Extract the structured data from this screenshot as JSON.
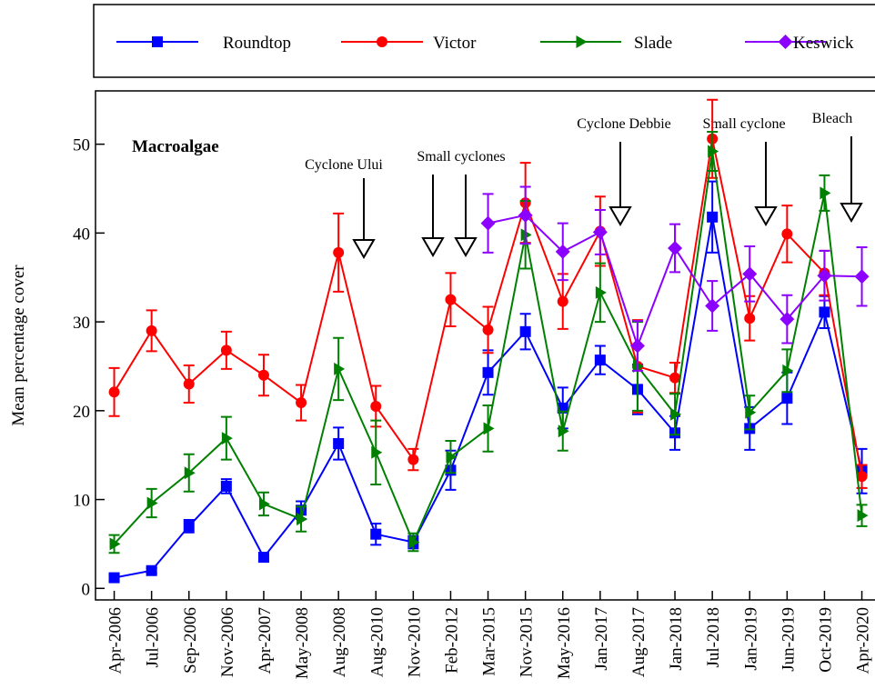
{
  "chart_data": {
    "type": "line",
    "title": "Macroalgae",
    "y_label": "Mean percentage cover",
    "categories": [
      "Apr-2006",
      "Jul-2006",
      "Sep-2006",
      "Nov-2006",
      "Apr-2007",
      "May-2008",
      "Aug-2008",
      "Aug-2010",
      "Nov-2010",
      "Feb-2012",
      "Mar-2015",
      "Nov-2015",
      "May-2016",
      "Jan-2017",
      "Aug-2017",
      "Jan-2018",
      "Jul-2018",
      "Jan-2019",
      "Jun-2019",
      "Oct-2019",
      "Apr-2020"
    ],
    "ylim": [
      -1.3,
      56
    ],
    "yticks": [
      0,
      10,
      20,
      30,
      40,
      50
    ],
    "annotations": [
      "Cyclone Ului",
      "Small cyclones",
      "Cyclone Debbie",
      "Small cyclone",
      "Bleach"
    ],
    "series": [
      {
        "name": "Roundtop",
        "color": "#0000ff",
        "marker": "square",
        "values": [
          1.2,
          2.0,
          7.0,
          11.5,
          3.5,
          8.8,
          16.3,
          6.1,
          5.2,
          13.3,
          24.3,
          28.9,
          20.3,
          25.7,
          22.4,
          17.5,
          41.8,
          18.0,
          21.4,
          31.1,
          13.2
        ],
        "errors": [
          0.3,
          0.3,
          0.7,
          0.8,
          0.5,
          1.0,
          1.8,
          1.2,
          0.7,
          2.2,
          2.5,
          2.0,
          2.3,
          1.6,
          2.8,
          1.9,
          4.0,
          2.4,
          2.9,
          1.8,
          2.5
        ]
      },
      {
        "name": "Victor",
        "color": "#ff0000",
        "marker": "circle",
        "values": [
          22.1,
          29.0,
          23.0,
          26.8,
          24.0,
          20.9,
          37.8,
          20.5,
          14.5,
          32.5,
          29.1,
          43.4,
          32.3,
          40.2,
          25.0,
          23.7,
          50.6,
          30.4,
          39.9,
          35.5,
          12.6
        ],
        "errors": [
          2.7,
          2.3,
          2.1,
          2.1,
          2.3,
          2.0,
          4.4,
          2.3,
          1.2,
          3.0,
          2.6,
          4.5,
          3.1,
          3.9,
          5.2,
          1.7,
          4.4,
          2.5,
          3.2,
          2.5,
          1.3
        ]
      },
      {
        "name": "Slade",
        "color": "#008000",
        "marker": "triangle",
        "values": [
          5.0,
          9.6,
          13.0,
          16.9,
          9.5,
          7.8,
          24.7,
          15.3,
          5.2,
          14.8,
          18.0,
          39.8,
          17.7,
          33.3,
          25.0,
          19.6,
          49.2,
          19.8,
          24.5,
          44.5,
          8.2
        ],
        "errors": [
          1.0,
          1.6,
          2.1,
          2.4,
          1.3,
          1.4,
          3.5,
          3.6,
          1.0,
          1.8,
          2.6,
          3.8,
          2.2,
          3.3,
          5.0,
          2.3,
          2.2,
          1.9,
          2.4,
          2.0,
          1.2
        ]
      },
      {
        "name": "Keswick",
        "color": "#8b00ff",
        "marker": "diamond",
        "values": [
          null,
          null,
          null,
          null,
          null,
          null,
          null,
          null,
          null,
          null,
          41.1,
          42.0,
          37.9,
          40.1,
          27.3,
          38.3,
          31.8,
          35.4,
          30.3,
          35.2,
          35.1
        ],
        "errors": [
          null,
          null,
          null,
          null,
          null,
          null,
          null,
          null,
          null,
          null,
          3.3,
          3.2,
          3.2,
          2.5,
          2.8,
          2.7,
          2.8,
          3.1,
          2.7,
          2.8,
          3.3
        ]
      }
    ]
  }
}
